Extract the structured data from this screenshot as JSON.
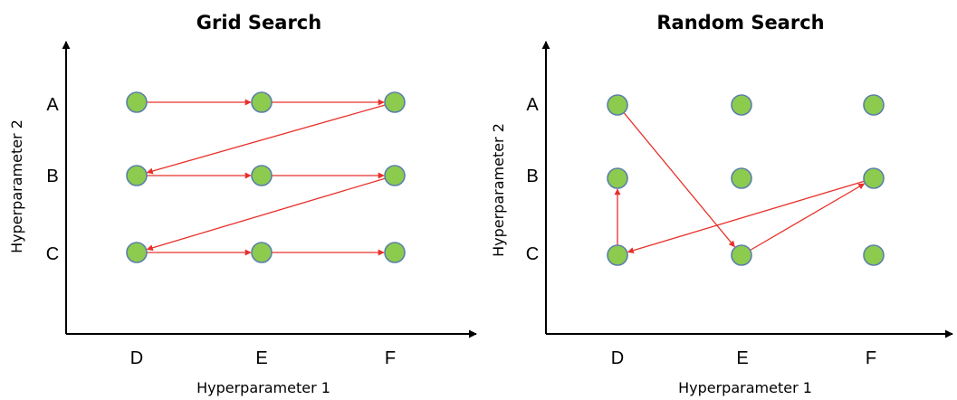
{
  "colors": {
    "node_fill": "#8ccb4e",
    "node_stroke": "#5b7fa9",
    "arrow": "#e8302a",
    "axis": "#000000"
  },
  "panels": [
    {
      "title": "Grid Search",
      "xlabel": "Hyperparameter 1",
      "ylabel": "Hyperparameter 2",
      "x_ticks": [
        "D",
        "E",
        "F"
      ],
      "y_ticks": [
        "A",
        "B",
        "C"
      ],
      "points": [
        [
          "D",
          "A"
        ],
        [
          "E",
          "A"
        ],
        [
          "F",
          "A"
        ],
        [
          "D",
          "B"
        ],
        [
          "E",
          "B"
        ],
        [
          "F",
          "B"
        ],
        [
          "D",
          "C"
        ],
        [
          "E",
          "C"
        ],
        [
          "F",
          "C"
        ]
      ],
      "path": [
        [
          "D",
          "A"
        ],
        [
          "E",
          "A"
        ],
        [
          "F",
          "A"
        ],
        [
          "D",
          "B"
        ],
        [
          "E",
          "B"
        ],
        [
          "F",
          "B"
        ],
        [
          "D",
          "C"
        ],
        [
          "E",
          "C"
        ],
        [
          "F",
          "C"
        ]
      ]
    },
    {
      "title": "Random Search",
      "xlabel": "Hyperparameter 1",
      "ylabel": "Hyperparameter 2",
      "x_ticks": [
        "D",
        "E",
        "F"
      ],
      "y_ticks": [
        "A",
        "B",
        "C"
      ],
      "points": [
        [
          "D",
          "A"
        ],
        [
          "E",
          "A"
        ],
        [
          "F",
          "A"
        ],
        [
          "D",
          "B"
        ],
        [
          "E",
          "B"
        ],
        [
          "F",
          "B"
        ],
        [
          "D",
          "C"
        ],
        [
          "E",
          "C"
        ],
        [
          "F",
          "C"
        ]
      ],
      "path": [
        [
          "D",
          "A"
        ],
        [
          "E",
          "C"
        ],
        [
          "F",
          "B"
        ],
        [
          "D",
          "C"
        ],
        [
          "D",
          "B"
        ]
      ]
    }
  ]
}
